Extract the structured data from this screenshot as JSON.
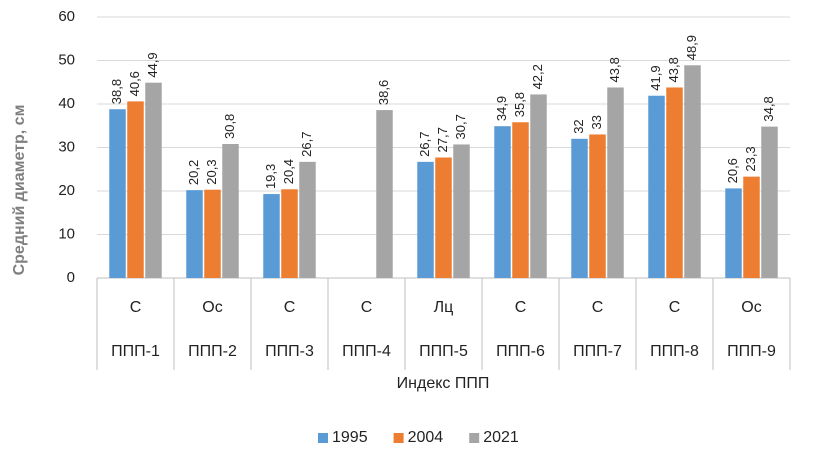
{
  "chart_data": {
    "type": "bar",
    "ylabel": "Средний диаметр, см",
    "xlabel": "Индекс ППП",
    "categories": [
      "ППП-1",
      "ППП-2",
      "ППП-3",
      "ППП-4",
      "ППП-5",
      "ППП-6",
      "ППП-7",
      "ППП-8",
      "ППП-9"
    ],
    "subcategories": [
      "С",
      "Ос",
      "С",
      "С",
      "Лц",
      "С",
      "С",
      "С",
      "Ос"
    ],
    "series": [
      {
        "name": "1995",
        "color": "#5b9bd5",
        "values": [
          38.8,
          20.2,
          19.3,
          null,
          26.7,
          34.9,
          32,
          41.9,
          20.6
        ],
        "value_labels": [
          "38,8",
          "20,2",
          "19,3",
          null,
          "26,7",
          "34,9",
          "32",
          "41,9",
          "20,6"
        ]
      },
      {
        "name": "2004",
        "color": "#ed7d31",
        "values": [
          40.6,
          20.3,
          20.4,
          null,
          27.7,
          35.8,
          33,
          43.8,
          23.3
        ],
        "value_labels": [
          "40,6",
          "20,3",
          "20,4",
          null,
          "27,7",
          "35,8",
          "33",
          "43,8",
          "23,3"
        ]
      },
      {
        "name": "2021",
        "color": "#a5a5a5",
        "values": [
          44.9,
          30.8,
          26.7,
          38.6,
          30.7,
          42.2,
          43.8,
          48.9,
          34.8
        ],
        "value_labels": [
          "44,9",
          "30,8",
          "26,7",
          "38,6",
          "30,7",
          "42,2",
          "43,8",
          "48,9",
          "34,8"
        ]
      }
    ],
    "ylim": [
      0,
      60
    ],
    "yticks": [
      0,
      10,
      20,
      30,
      40,
      50,
      60
    ],
    "grid": true,
    "legend": "bottom"
  }
}
